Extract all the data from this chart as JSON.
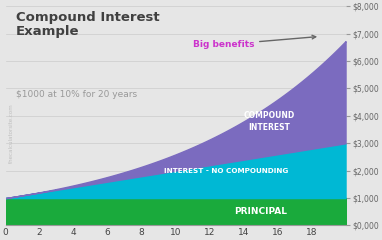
{
  "title": "Compound Interest\nExample",
  "subtitle": "$1000 at 10% for 20 years",
  "principal": 1000,
  "rate": 0.1,
  "years": 20,
  "bg_color": "#e6e6e6",
  "color_principal": "#1aaa3c",
  "color_simple": "#00b8d4",
  "color_compound": "#7b6bbf",
  "label_principal": "PRINCIPAL",
  "label_simple": "INTEREST - NO COMPOUNDING",
  "label_compound": "COMPOUND\nINTEREST",
  "annotation_text": "Big benefits",
  "annotation_color": "#cc33cc",
  "watermark": "thecalculatorsite.com",
  "ylim": [
    0,
    8000
  ],
  "xlim": [
    0,
    20
  ],
  "xticks": [
    0,
    2,
    4,
    6,
    8,
    10,
    12,
    14,
    16,
    18
  ],
  "yticks": [
    0,
    1000,
    2000,
    3000,
    4000,
    5000,
    6000,
    7000,
    8000
  ],
  "ytick_labels": [
    "$0,000",
    "$1,000",
    "$2,000",
    "$3,000",
    "$4,000",
    "$5,000",
    "$6,000",
    "$7,000",
    "$8,000"
  ]
}
